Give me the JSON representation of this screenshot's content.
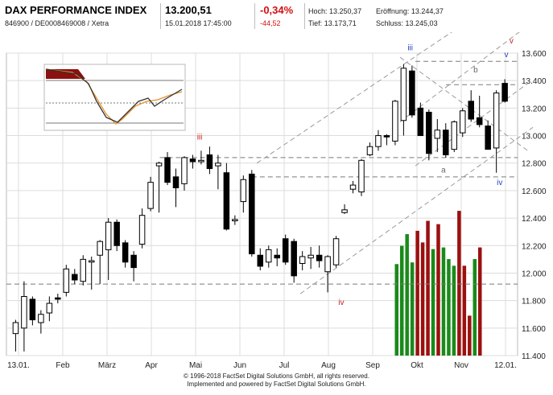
{
  "header": {
    "title": "DAX PERFORMANCE INDEX",
    "identifier": "846900 / DE0008469008 / Xetra",
    "price": "13.200,51",
    "datetime": "15.01.2018 17:45:00",
    "change_pct": "-0,34%",
    "change_abs": "-44,52",
    "high_label": "Hoch:",
    "high_value": "13.250,37",
    "low_label": "Tief:",
    "low_value": "13.173,71",
    "open_label": "Eröffnung:",
    "open_value": "13.244,37",
    "close_label": "Schluss:",
    "close_value": "13.245,03"
  },
  "footer": {
    "line1": "© 1996-2018 FactSet Digital Solutions GmbH, all rights reserved.",
    "line2": "Implemented and powered by FactSet Digital Solutions GmbH."
  },
  "colors": {
    "candle_up": "#ffffff",
    "candle_down": "#000000",
    "volume_green": "#1a8a1a",
    "volume_red": "#9b1010",
    "wave_red": "#cc2020",
    "wave_blue": "#2040c0",
    "guide_gray": "#9a9a9a"
  },
  "chart_data": {
    "type": "candlestick",
    "y_axis": {
      "min": 11400,
      "max": 13600,
      "ticks": [
        "11.400",
        "11.600",
        "11.800",
        "12.000",
        "12.200",
        "12.400",
        "12.600",
        "12.800",
        "13.000",
        "13.200",
        "13.400",
        "13.600"
      ],
      "position": "right"
    },
    "x_axis_labels": [
      "13.01.",
      "Feb",
      "März",
      "Apr",
      "Mai",
      "Jun",
      "Jul",
      "Aug",
      "Sep",
      "Okt",
      "Nov",
      "12.01."
    ],
    "grid": true,
    "candles": [
      {
        "o": 11560,
        "h": 11660,
        "l": 11430,
        "c": 11640
      },
      {
        "o": 11600,
        "h": 11940,
        "l": 11430,
        "c": 11830
      },
      {
        "o": 11810,
        "h": 11830,
        "l": 11620,
        "c": 11660
      },
      {
        "o": 11640,
        "h": 11730,
        "l": 11560,
        "c": 11700
      },
      {
        "o": 11710,
        "h": 11830,
        "l": 11650,
        "c": 11780
      },
      {
        "o": 11820,
        "h": 11850,
        "l": 11780,
        "c": 11810
      },
      {
        "o": 11860,
        "h": 12060,
        "l": 11830,
        "c": 12030
      },
      {
        "o": 11990,
        "h": 12030,
        "l": 11920,
        "c": 11950
      },
      {
        "o": 11940,
        "h": 12130,
        "l": 11910,
        "c": 12100
      },
      {
        "o": 12080,
        "h": 12120,
        "l": 11880,
        "c": 12090
      },
      {
        "o": 12130,
        "h": 12240,
        "l": 11920,
        "c": 12230
      },
      {
        "o": 12170,
        "h": 12400,
        "l": 11950,
        "c": 12370
      },
      {
        "o": 12370,
        "h": 12390,
        "l": 12160,
        "c": 12200
      },
      {
        "o": 12220,
        "h": 12240,
        "l": 12040,
        "c": 12080
      },
      {
        "o": 12130,
        "h": 12160,
        "l": 11940,
        "c": 12040
      },
      {
        "o": 12210,
        "h": 12470,
        "l": 12180,
        "c": 12420
      },
      {
        "o": 12470,
        "h": 12700,
        "l": 12450,
        "c": 12660
      },
      {
        "o": 12780,
        "h": 12810,
        "l": 12440,
        "c": 12800
      },
      {
        "o": 12840,
        "h": 12880,
        "l": 12640,
        "c": 12660
      },
      {
        "o": 12700,
        "h": 12760,
        "l": 12480,
        "c": 12620
      },
      {
        "o": 12650,
        "h": 12850,
        "l": 12600,
        "c": 12840
      },
      {
        "o": 12830,
        "h": 12860,
        "l": 12760,
        "c": 12810
      },
      {
        "o": 12810,
        "h": 12890,
        "l": 12790,
        "c": 12820
      },
      {
        "o": 12860,
        "h": 12920,
        "l": 12720,
        "c": 12760
      },
      {
        "o": 12780,
        "h": 12860,
        "l": 12610,
        "c": 12800
      },
      {
        "o": 12730,
        "h": 12800,
        "l": 12310,
        "c": 12320
      },
      {
        "o": 12380,
        "h": 12420,
        "l": 12350,
        "c": 12390
      },
      {
        "o": 12520,
        "h": 12710,
        "l": 12440,
        "c": 12680
      },
      {
        "o": 12720,
        "h": 12750,
        "l": 12120,
        "c": 12140
      },
      {
        "o": 12130,
        "h": 12180,
        "l": 12020,
        "c": 12050
      },
      {
        "o": 12080,
        "h": 12200,
        "l": 12040,
        "c": 12170
      },
      {
        "o": 12130,
        "h": 12180,
        "l": 12050,
        "c": 12110
      },
      {
        "o": 12250,
        "h": 12280,
        "l": 12060,
        "c": 12080
      },
      {
        "o": 12230,
        "h": 12250,
        "l": 11930,
        "c": 11980
      },
      {
        "o": 12070,
        "h": 12160,
        "l": 12020,
        "c": 12120
      },
      {
        "o": 12110,
        "h": 12190,
        "l": 12030,
        "c": 12130
      },
      {
        "o": 12130,
        "h": 12200,
        "l": 12040,
        "c": 12090
      },
      {
        "o": 12010,
        "h": 12130,
        "l": 11860,
        "c": 12120
      },
      {
        "o": 12060,
        "h": 12270,
        "l": 12040,
        "c": 12250
      },
      {
        "o": 12440,
        "h": 12500,
        "l": 12430,
        "c": 12460
      },
      {
        "o": 12610,
        "h": 12670,
        "l": 12580,
        "c": 12640
      },
      {
        "o": 12590,
        "h": 12830,
        "l": 12560,
        "c": 12820
      },
      {
        "o": 12860,
        "h": 12950,
        "l": 12850,
        "c": 12920
      },
      {
        "o": 12920,
        "h": 13040,
        "l": 12890,
        "c": 13000
      },
      {
        "o": 13000,
        "h": 13010,
        "l": 12930,
        "c": 12990
      },
      {
        "o": 12960,
        "h": 13260,
        "l": 12930,
        "c": 13250
      },
      {
        "o": 13110,
        "h": 13520,
        "l": 13000,
        "c": 13490
      },
      {
        "o": 13470,
        "h": 13510,
        "l": 13130,
        "c": 13150
      },
      {
        "o": 13200,
        "h": 13240,
        "l": 13000,
        "c": 13000
      },
      {
        "o": 13170,
        "h": 13190,
        "l": 12820,
        "c": 12870
      },
      {
        "o": 12980,
        "h": 13120,
        "l": 12880,
        "c": 13040
      },
      {
        "o": 13040,
        "h": 13090,
        "l": 12840,
        "c": 12860
      },
      {
        "o": 12900,
        "h": 13110,
        "l": 12880,
        "c": 13100
      },
      {
        "o": 13020,
        "h": 13200,
        "l": 12990,
        "c": 13180
      },
      {
        "o": 13250,
        "h": 13330,
        "l": 13100,
        "c": 13120
      },
      {
        "o": 13130,
        "h": 13290,
        "l": 13060,
        "c": 13080
      },
      {
        "o": 13070,
        "h": 13110,
        "l": 12900,
        "c": 12900
      },
      {
        "o": 12910,
        "h": 13330,
        "l": 12730,
        "c": 13310
      },
      {
        "o": 13380,
        "h": 13410,
        "l": 13240,
        "c": 13250
      }
    ],
    "volume_bars": [
      {
        "value": 0.55,
        "color": "green"
      },
      {
        "value": 0.66,
        "color": "green"
      },
      {
        "value": 0.73,
        "color": "green"
      },
      {
        "value": 0.56,
        "color": "green"
      },
      {
        "value": 0.75,
        "color": "red"
      },
      {
        "value": 0.68,
        "color": "red"
      },
      {
        "value": 0.81,
        "color": "red"
      },
      {
        "value": 0.64,
        "color": "green"
      },
      {
        "value": 0.79,
        "color": "red"
      },
      {
        "value": 0.65,
        "color": "green"
      },
      {
        "value": 0.58,
        "color": "green"
      },
      {
        "value": 0.54,
        "color": "green"
      },
      {
        "value": 0.87,
        "color": "red"
      },
      {
        "value": 0.54,
        "color": "red"
      },
      {
        "value": 0.24,
        "color": "red"
      },
      {
        "value": 0.58,
        "color": "green"
      },
      {
        "value": 0.65,
        "color": "red"
      }
    ],
    "horizontal_levels": [
      11920,
      12840,
      12700,
      13540,
      13370
    ],
    "wave_labels": [
      {
        "text": "iii",
        "color": "red",
        "x": 0.378,
        "y": 12970
      },
      {
        "text": "iv",
        "color": "red",
        "x": 0.655,
        "y": 11770
      },
      {
        "text": "iii",
        "color": "blue",
        "x": 0.79,
        "y": 13620
      },
      {
        "text": "iv",
        "color": "blue",
        "x": 0.965,
        "y": 12640
      },
      {
        "text": "v",
        "color": "red",
        "x": 0.988,
        "y": 13670
      },
      {
        "text": "v",
        "color": "blue",
        "x": 0.978,
        "y": 13570
      },
      {
        "text": "a",
        "color": "gray",
        "x": 0.855,
        "y": 12730
      },
      {
        "text": "b",
        "color": "gray",
        "x": 0.918,
        "y": 13460
      }
    ]
  }
}
